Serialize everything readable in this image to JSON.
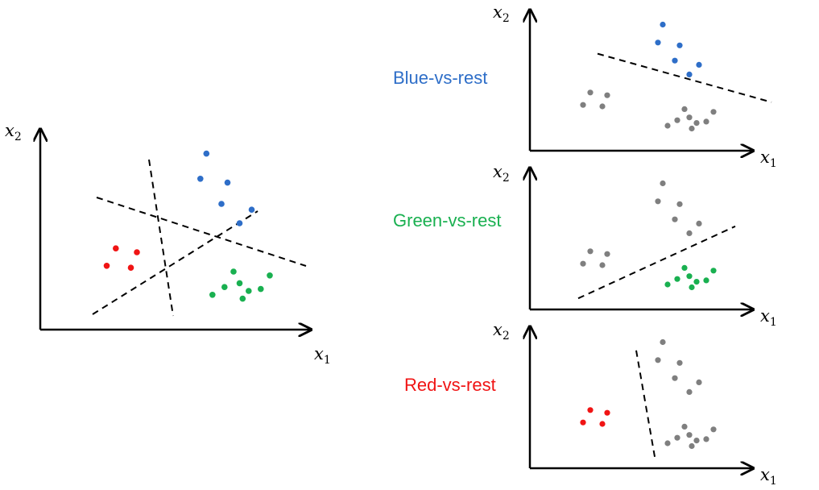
{
  "colors": {
    "blue": "#2e6ec8",
    "green": "#19b050",
    "red": "#f01414",
    "gray": "#7f7f7f",
    "blue_label": "#2e6ec8",
    "green_label": "#19b050",
    "red_label": "#f01414"
  },
  "axis_labels": {
    "x_main": "x",
    "x_sub": "1",
    "y_main": "x",
    "y_sub": "2"
  },
  "panels": {
    "combined": {
      "label": ""
    },
    "blue": {
      "label": "Blue-vs-rest"
    },
    "green": {
      "label": "Green-vs-rest"
    },
    "red": {
      "label": "Red-vs-rest"
    }
  },
  "points": {
    "blue": [
      [
        0.55,
        0.91
      ],
      [
        0.53,
        0.78
      ],
      [
        0.62,
        0.76
      ],
      [
        0.6,
        0.65
      ],
      [
        0.7,
        0.62
      ],
      [
        0.66,
        0.55
      ]
    ],
    "green": [
      [
        0.64,
        0.3
      ],
      [
        0.76,
        0.28
      ],
      [
        0.61,
        0.22
      ],
      [
        0.66,
        0.24
      ],
      [
        0.69,
        0.2
      ],
      [
        0.73,
        0.21
      ],
      [
        0.57,
        0.18
      ],
      [
        0.67,
        0.16
      ]
    ],
    "red": [
      [
        0.25,
        0.42
      ],
      [
        0.22,
        0.33
      ],
      [
        0.32,
        0.4
      ],
      [
        0.3,
        0.32
      ]
    ]
  },
  "separators": {
    "blue": [
      [
        0.28,
        0.7
      ],
      [
        1.0,
        0.35
      ]
    ],
    "green": [
      [
        0.2,
        0.08
      ],
      [
        0.85,
        0.6
      ]
    ],
    "red": [
      [
        0.44,
        0.85
      ],
      [
        0.52,
        0.05
      ]
    ]
  }
}
